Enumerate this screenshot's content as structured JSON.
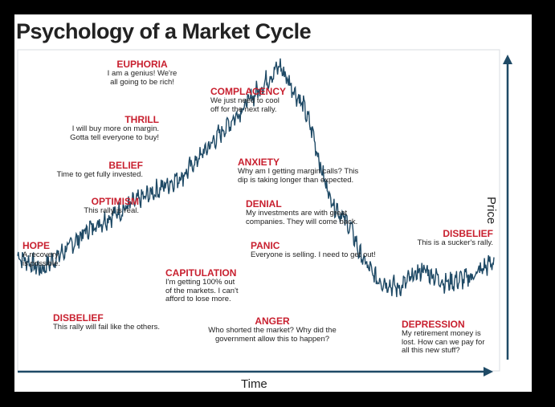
{
  "chart_data": {
    "type": "line",
    "title": "Psychology of a Market Cycle",
    "xlabel": "Time",
    "ylabel": "Price",
    "grid": false,
    "x": [
      0,
      5,
      10,
      15,
      20,
      25,
      30,
      35,
      40,
      45,
      50,
      55,
      60,
      62,
      64,
      66,
      68,
      70,
      72,
      75,
      80,
      85,
      90,
      95,
      100
    ],
    "series": [
      {
        "values": [
          30,
          25,
          32,
          40,
          45,
          50,
          55,
          60,
          70,
          80,
          90,
          100,
          85,
          75,
          60,
          50,
          45,
          40,
          30,
          22,
          18,
          25,
          20,
          22,
          28
        ]
      }
    ],
    "phases": [
      {
        "name": "EUPHORIA",
        "text": "I am a genius! We're\nall going to be rich!"
      },
      {
        "name": "THRILL",
        "text": "I will buy more on margin.\nGotta tell everyone to buy!"
      },
      {
        "name": "BELIEF",
        "text": "Time to get fully invested."
      },
      {
        "name": "OPTIMISM",
        "text": "This rally is real."
      },
      {
        "name": "HOPE",
        "text": "A recovery\nis possible."
      },
      {
        "name": "DISBELIEF",
        "text": "This rally will fail like the others."
      },
      {
        "name": "COMPLACENCY",
        "text": "We just need to cool\noff for the next rally."
      },
      {
        "name": "ANXIETY",
        "text": "Why am I getting margin calls? This\ndip is taking longer than expected."
      },
      {
        "name": "DENIAL",
        "text": "My investments are with great\ncompanies. They will come back."
      },
      {
        "name": "PANIC",
        "text": "Everyone is selling. I need to get out!"
      },
      {
        "name": "CAPITULATION",
        "text": "I'm getting 100% out\nof the markets. I can't\nafford to lose more."
      },
      {
        "name": "ANGER",
        "text": "Who shorted the market? Why did the\ngovernment allow this to happen?"
      },
      {
        "name": "DEPRESSION",
        "text": "My retirement money is\nlost. How can we pay for\nall this new stuff?"
      },
      {
        "name": "DISBELIEF",
        "text": "This is a sucker's rally."
      }
    ],
    "colors": {
      "line": "#1f4a66",
      "phase_name": "#c8202f",
      "arrow": "#1f4a66"
    }
  }
}
